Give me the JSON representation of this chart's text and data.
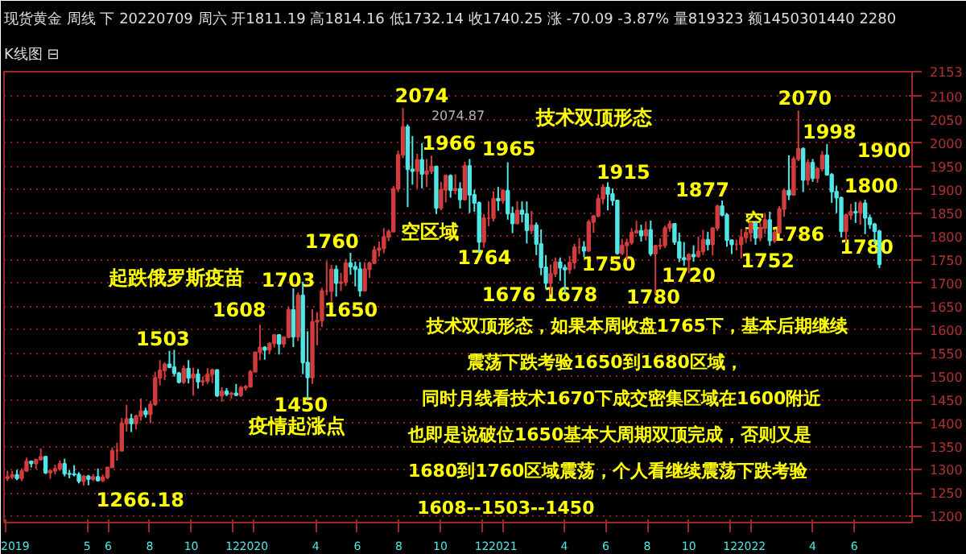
{
  "chart_data": {
    "type": "candlestick",
    "title": "现货黄金 周线 下 20220709 周六 开1811.19 高1814.16 低1732.14 收1740.25 涨 -70.09 -3.87% 量819323 额1450301440 2280",
    "subtitle": "K线图 ⊟",
    "grid": "y",
    "xlim": [
      "2018-12-30",
      "2022-08-25"
    ],
    "ylim": [
      1187,
      2153
    ],
    "yticks": [
      1200,
      1250,
      1300,
      1350,
      1400,
      1450,
      1500,
      1550,
      1600,
      1650,
      1700,
      1750,
      1800,
      1850,
      1900,
      1950,
      2000,
      2050,
      2100,
      2153
    ],
    "xticks": [
      {
        "value": "2019-01-01",
        "label": "2019"
      },
      {
        "value": "2019-05-01",
        "label": "5"
      },
      {
        "value": "2019-06-01",
        "label": "6"
      },
      {
        "value": "2019-08-01",
        "label": "8"
      },
      {
        "value": "2019-10-01",
        "label": "10"
      },
      {
        "value": "2019-12-01",
        "label": "12"
      },
      {
        "value": "2020-01-01",
        "label": "2020"
      },
      {
        "value": "2020-04-01",
        "label": "4"
      },
      {
        "value": "2020-06-01",
        "label": "6"
      },
      {
        "value": "2020-08-01",
        "label": "8"
      },
      {
        "value": "2020-10-01",
        "label": "10"
      },
      {
        "value": "2020-12-01",
        "label": "12"
      },
      {
        "value": "2021-01-01",
        "label": "2021"
      },
      {
        "value": "2021-04-01",
        "label": "4"
      },
      {
        "value": "2021-06-01",
        "label": "6"
      },
      {
        "value": "2021-08-01",
        "label": "8"
      },
      {
        "value": "2021-10-01",
        "label": "10"
      },
      {
        "value": "2021-12-01",
        "label": "12"
      },
      {
        "value": "2022-01-01",
        "label": "2022"
      },
      {
        "value": "2022-04-01",
        "label": "4"
      },
      {
        "value": "2022-06-01",
        "label": "6"
      }
    ],
    "x": [
      "2019-01-04",
      "2019-01-11",
      "2019-01-18",
      "2019-01-25",
      "2019-02-01",
      "2019-02-08",
      "2019-02-15",
      "2019-02-22",
      "2019-03-01",
      "2019-03-08",
      "2019-03-15",
      "2019-03-22",
      "2019-03-29",
      "2019-04-05",
      "2019-04-12",
      "2019-04-19",
      "2019-04-26",
      "2019-05-03",
      "2019-05-10",
      "2019-05-17",
      "2019-05-24",
      "2019-05-31",
      "2019-06-07",
      "2019-06-14",
      "2019-06-21",
      "2019-06-28",
      "2019-07-05",
      "2019-07-12",
      "2019-07-19",
      "2019-07-26",
      "2019-08-02",
      "2019-08-09",
      "2019-08-16",
      "2019-08-23",
      "2019-08-30",
      "2019-09-06",
      "2019-09-13",
      "2019-09-20",
      "2019-09-27",
      "2019-10-04",
      "2019-10-11",
      "2019-10-18",
      "2019-10-25",
      "2019-11-01",
      "2019-11-08",
      "2019-11-15",
      "2019-11-22",
      "2019-11-29",
      "2019-12-06",
      "2019-12-13",
      "2019-12-20",
      "2019-12-27",
      "2020-01-03",
      "2020-01-10",
      "2020-01-17",
      "2020-01-24",
      "2020-01-31",
      "2020-02-07",
      "2020-02-14",
      "2020-02-21",
      "2020-02-28",
      "2020-03-06",
      "2020-03-13",
      "2020-03-20",
      "2020-03-27",
      "2020-04-03",
      "2020-04-10",
      "2020-04-17",
      "2020-04-24",
      "2020-05-01",
      "2020-05-08",
      "2020-05-15",
      "2020-05-22",
      "2020-05-29",
      "2020-06-05",
      "2020-06-12",
      "2020-06-19",
      "2020-06-26",
      "2020-07-03",
      "2020-07-10",
      "2020-07-17",
      "2020-07-24",
      "2020-07-31",
      "2020-08-07",
      "2020-08-14",
      "2020-08-21",
      "2020-08-28",
      "2020-09-04",
      "2020-09-11",
      "2020-09-18",
      "2020-09-25",
      "2020-10-02",
      "2020-10-09",
      "2020-10-16",
      "2020-10-23",
      "2020-10-30",
      "2020-11-06",
      "2020-11-13",
      "2020-11-20",
      "2020-11-27",
      "2020-12-04",
      "2020-12-11",
      "2020-12-18",
      "2020-12-25",
      "2021-01-01",
      "2021-01-08",
      "2021-01-15",
      "2021-01-22",
      "2021-01-29",
      "2021-02-05",
      "2021-02-12",
      "2021-02-19",
      "2021-02-26",
      "2021-03-05",
      "2021-03-12",
      "2021-03-19",
      "2021-03-26",
      "2021-04-02",
      "2021-04-09",
      "2021-04-16",
      "2021-04-23",
      "2021-04-30",
      "2021-05-07",
      "2021-05-14",
      "2021-05-21",
      "2021-05-28",
      "2021-06-04",
      "2021-06-11",
      "2021-06-18",
      "2021-06-25",
      "2021-07-02",
      "2021-07-09",
      "2021-07-16",
      "2021-07-23",
      "2021-07-30",
      "2021-08-06",
      "2021-08-13",
      "2021-08-20",
      "2021-08-27",
      "2021-09-03",
      "2021-09-10",
      "2021-09-17",
      "2021-09-24",
      "2021-10-01",
      "2021-10-08",
      "2021-10-15",
      "2021-10-22",
      "2021-10-29",
      "2021-11-05",
      "2021-11-12",
      "2021-11-19",
      "2021-11-26",
      "2021-12-03",
      "2021-12-10",
      "2021-12-17",
      "2021-12-24",
      "2021-12-31",
      "2022-01-07",
      "2022-01-14",
      "2022-01-21",
      "2022-01-28",
      "2022-02-04",
      "2022-02-11",
      "2022-02-18",
      "2022-02-25",
      "2022-03-04",
      "2022-03-11",
      "2022-03-18",
      "2022-03-25",
      "2022-04-01",
      "2022-04-08",
      "2022-04-15",
      "2022-04-22",
      "2022-04-29",
      "2022-05-06",
      "2022-05-13",
      "2022-05-20",
      "2022-05-27",
      "2022-06-03",
      "2022-06-10",
      "2022-06-17",
      "2022-06-24",
      "2022-07-01",
      "2022-07-08"
    ],
    "ohlc": [
      [
        1282,
        1298,
        1276,
        1285
      ],
      [
        1285,
        1298,
        1280,
        1289
      ],
      [
        1289,
        1300,
        1278,
        1282
      ],
      [
        1282,
        1303,
        1276,
        1298
      ],
      [
        1298,
        1326,
        1296,
        1318
      ],
      [
        1318,
        1320,
        1305,
        1314
      ],
      [
        1314,
        1323,
        1302,
        1322
      ],
      [
        1322,
        1346,
        1320,
        1328
      ],
      [
        1328,
        1330,
        1291,
        1294
      ],
      [
        1294,
        1300,
        1281,
        1298
      ],
      [
        1298,
        1311,
        1290,
        1302
      ],
      [
        1302,
        1320,
        1298,
        1313
      ],
      [
        1313,
        1324,
        1286,
        1292
      ],
      [
        1292,
        1299,
        1282,
        1291
      ],
      [
        1291,
        1310,
        1286,
        1290
      ],
      [
        1290,
        1295,
        1271,
        1276
      ],
      [
        1276,
        1288,
        1266,
        1286
      ],
      [
        1286,
        1289,
        1267,
        1280
      ],
      [
        1280,
        1291,
        1276,
        1285
      ],
      [
        1285,
        1303,
        1275,
        1277
      ],
      [
        1277,
        1290,
        1274,
        1284
      ],
      [
        1284,
        1306,
        1280,
        1305
      ],
      [
        1305,
        1348,
        1305,
        1341
      ],
      [
        1341,
        1358,
        1320,
        1341
      ],
      [
        1341,
        1411,
        1340,
        1399
      ],
      [
        1399,
        1439,
        1382,
        1409
      ],
      [
        1409,
        1420,
        1381,
        1399
      ],
      [
        1399,
        1418,
        1387,
        1415
      ],
      [
        1415,
        1453,
        1405,
        1426
      ],
      [
        1426,
        1433,
        1412,
        1419
      ],
      [
        1419,
        1448,
        1400,
        1440
      ],
      [
        1440,
        1510,
        1437,
        1497
      ],
      [
        1497,
        1535,
        1481,
        1513
      ],
      [
        1513,
        1530,
        1492,
        1526
      ],
      [
        1526,
        1555,
        1518,
        1520
      ],
      [
        1520,
        1557,
        1500,
        1507
      ],
      [
        1507,
        1510,
        1485,
        1488
      ],
      [
        1488,
        1524,
        1484,
        1517
      ],
      [
        1517,
        1535,
        1485,
        1497
      ],
      [
        1497,
        1519,
        1459,
        1505
      ],
      [
        1505,
        1516,
        1474,
        1489
      ],
      [
        1489,
        1500,
        1480,
        1490
      ],
      [
        1490,
        1518,
        1484,
        1505
      ],
      [
        1505,
        1517,
        1486,
        1514
      ],
      [
        1514,
        1515,
        1456,
        1459
      ],
      [
        1459,
        1477,
        1446,
        1468
      ],
      [
        1468,
        1475,
        1458,
        1462
      ],
      [
        1462,
        1467,
        1452,
        1464
      ],
      [
        1464,
        1484,
        1458,
        1460
      ],
      [
        1460,
        1480,
        1456,
        1476
      ],
      [
        1476,
        1482,
        1470,
        1478
      ],
      [
        1478,
        1514,
        1478,
        1510
      ],
      [
        1510,
        1553,
        1510,
        1552
      ],
      [
        1552,
        1611,
        1535,
        1562
      ],
      [
        1562,
        1565,
        1536,
        1557
      ],
      [
        1557,
        1573,
        1548,
        1571
      ],
      [
        1571,
        1591,
        1562,
        1589
      ],
      [
        1589,
        1591,
        1547,
        1570
      ],
      [
        1570,
        1585,
        1562,
        1584
      ],
      [
        1584,
        1649,
        1582,
        1643
      ],
      [
        1643,
        1689,
        1563,
        1585
      ],
      [
        1585,
        1680,
        1576,
        1674
      ],
      [
        1674,
        1703,
        1505,
        1530
      ],
      [
        1530,
        1597,
        1451,
        1498
      ],
      [
        1498,
        1644,
        1484,
        1617
      ],
      [
        1617,
        1638,
        1567,
        1620
      ],
      [
        1620,
        1690,
        1606,
        1683
      ],
      [
        1683,
        1747,
        1674,
        1683
      ],
      [
        1683,
        1739,
        1660,
        1729
      ],
      [
        1729,
        1738,
        1671,
        1700
      ],
      [
        1700,
        1722,
        1683,
        1702
      ],
      [
        1702,
        1752,
        1694,
        1743
      ],
      [
        1743,
        1765,
        1718,
        1735
      ],
      [
        1735,
        1746,
        1693,
        1730
      ],
      [
        1730,
        1745,
        1671,
        1684
      ],
      [
        1684,
        1745,
        1684,
        1730
      ],
      [
        1730,
        1746,
        1711,
        1743
      ],
      [
        1743,
        1779,
        1741,
        1771
      ],
      [
        1771,
        1789,
        1757,
        1775
      ],
      [
        1775,
        1818,
        1764,
        1799
      ],
      [
        1799,
        1815,
        1790,
        1810
      ],
      [
        1810,
        1908,
        1810,
        1902
      ],
      [
        1902,
        1984,
        1895,
        1975
      ],
      [
        1975,
        2075,
        1968,
        2035
      ],
      [
        2035,
        2040,
        1863,
        1944
      ],
      [
        1944,
        2015,
        1911,
        1940
      ],
      [
        1940,
        1977,
        1903,
        1964
      ],
      [
        1964,
        2000,
        1903,
        1934
      ],
      [
        1934,
        1966,
        1906,
        1940
      ],
      [
        1940,
        1973,
        1934,
        1950
      ],
      [
        1950,
        1950,
        1848,
        1861
      ],
      [
        1861,
        1917,
        1856,
        1900
      ],
      [
        1900,
        1933,
        1873,
        1930
      ],
      [
        1930,
        1933,
        1883,
        1899
      ],
      [
        1899,
        1933,
        1890,
        1902
      ],
      [
        1902,
        1916,
        1860,
        1879
      ],
      [
        1879,
        1960,
        1877,
        1951
      ],
      [
        1951,
        1966,
        1850,
        1889
      ],
      [
        1889,
        1900,
        1853,
        1872
      ],
      [
        1872,
        1875,
        1764,
        1788
      ],
      [
        1788,
        1848,
        1776,
        1839
      ],
      [
        1839,
        1875,
        1822,
        1839
      ],
      [
        1839,
        1897,
        1832,
        1881
      ],
      [
        1881,
        1906,
        1855,
        1877
      ],
      [
        1877,
        1902,
        1870,
        1898
      ],
      [
        1898,
        1959,
        1836,
        1849
      ],
      [
        1849,
        1864,
        1807,
        1828
      ],
      [
        1828,
        1875,
        1826,
        1856
      ],
      [
        1856,
        1875,
        1830,
        1848
      ],
      [
        1848,
        1875,
        1785,
        1813
      ],
      [
        1813,
        1855,
        1805,
        1824
      ],
      [
        1824,
        1830,
        1760,
        1784
      ],
      [
        1784,
        1815,
        1717,
        1734
      ],
      [
        1734,
        1760,
        1687,
        1700
      ],
      [
        1700,
        1740,
        1676,
        1720
      ],
      [
        1720,
        1755,
        1713,
        1745
      ],
      [
        1745,
        1755,
        1705,
        1733
      ],
      [
        1733,
        1740,
        1678,
        1729
      ],
      [
        1729,
        1758,
        1720,
        1744
      ],
      [
        1744,
        1784,
        1730,
        1777
      ],
      [
        1777,
        1797,
        1762,
        1777
      ],
      [
        1777,
        1790,
        1756,
        1769
      ],
      [
        1769,
        1836,
        1767,
        1831
      ],
      [
        1831,
        1845,
        1808,
        1844
      ],
      [
        1844,
        1890,
        1841,
        1881
      ],
      [
        1881,
        1912,
        1869,
        1905
      ],
      [
        1905,
        1916,
        1856,
        1891
      ],
      [
        1891,
        1903,
        1866,
        1877
      ],
      [
        1877,
        1877,
        1761,
        1764
      ],
      [
        1764,
        1795,
        1760,
        1781
      ],
      [
        1781,
        1795,
        1750,
        1787
      ],
      [
        1787,
        1818,
        1782,
        1808
      ],
      [
        1808,
        1834,
        1806,
        1812
      ],
      [
        1812,
        1825,
        1789,
        1802
      ],
      [
        1802,
        1832,
        1791,
        1814
      ],
      [
        1814,
        1834,
        1758,
        1763
      ],
      [
        1763,
        1782,
        1677,
        1780
      ],
      [
        1780,
        1796,
        1772,
        1781
      ],
      [
        1781,
        1823,
        1775,
        1818
      ],
      [
        1818,
        1834,
        1810,
        1827
      ],
      [
        1827,
        1828,
        1782,
        1788
      ],
      [
        1788,
        1808,
        1745,
        1754
      ],
      [
        1754,
        1788,
        1737,
        1750
      ],
      [
        1750,
        1764,
        1721,
        1761
      ],
      [
        1761,
        1781,
        1746,
        1757
      ],
      [
        1757,
        1800,
        1755,
        1768
      ],
      [
        1768,
        1814,
        1760,
        1793
      ],
      [
        1793,
        1810,
        1770,
        1783
      ],
      [
        1783,
        1818,
        1759,
        1818
      ],
      [
        1818,
        1868,
        1812,
        1865
      ],
      [
        1865,
        1877,
        1843,
        1846
      ],
      [
        1846,
        1850,
        1778,
        1792
      ],
      [
        1792,
        1792,
        1762,
        1783
      ],
      [
        1783,
        1793,
        1770,
        1783
      ],
      [
        1783,
        1816,
        1753,
        1798
      ],
      [
        1798,
        1815,
        1786,
        1808
      ],
      [
        1808,
        1831,
        1789,
        1829
      ],
      [
        1829,
        1831,
        1782,
        1797
      ],
      [
        1797,
        1828,
        1790,
        1818
      ],
      [
        1818,
        1848,
        1805,
        1835
      ],
      [
        1835,
        1853,
        1780,
        1791
      ],
      [
        1791,
        1815,
        1786,
        1808
      ],
      [
        1808,
        1865,
        1807,
        1859
      ],
      [
        1859,
        1903,
        1842,
        1898
      ],
      [
        1898,
        1974,
        1878,
        1889
      ],
      [
        1889,
        1971,
        1889,
        1966
      ],
      [
        1966,
        2070,
        1961,
        1988
      ],
      [
        1988,
        1991,
        1895,
        1921
      ],
      [
        1921,
        1966,
        1910,
        1958
      ],
      [
        1958,
        1966,
        1917,
        1925
      ],
      [
        1925,
        1948,
        1915,
        1945
      ],
      [
        1945,
        1983,
        1939,
        1974
      ],
      [
        1974,
        1998,
        1930,
        1932
      ],
      [
        1932,
        1936,
        1872,
        1896
      ],
      [
        1896,
        1909,
        1850,
        1883
      ],
      [
        1883,
        1885,
        1798,
        1811
      ],
      [
        1811,
        1849,
        1786,
        1846
      ],
      [
        1846,
        1870,
        1836,
        1853
      ],
      [
        1853,
        1874,
        1829,
        1851
      ],
      [
        1851,
        1876,
        1825,
        1871
      ],
      [
        1871,
        1879,
        1805,
        1840
      ],
      [
        1840,
        1847,
        1816,
        1826
      ],
      [
        1826,
        1829,
        1784,
        1811
      ],
      [
        1811.19,
        1814.16,
        1732.14,
        1740.25
      ]
    ],
    "annotations": [
      "2074",
      "2074.87",
      "1966",
      "1965",
      "1915",
      "1877",
      "2070",
      "1998",
      "1900",
      "1800",
      "1780",
      "1786",
      "1752",
      "空",
      "1720",
      "1780",
      "1750",
      "1678",
      "1676",
      "1764",
      "1760",
      "空区域",
      "1703",
      "起跌俄罗斯疫苗",
      "1608",
      "1650",
      "1503",
      "1450",
      "疫情起涨点",
      "1266.18",
      "技术双顶形态",
      "技术双顶形态，如果本周收盘1765下，基本后期继续",
      "震荡下跌考验1650到1680区域，",
      "同时月线看技术1670下成交密集区域在1600附近",
      "也即是说破位1650基本大周期双顶完成，否则又是",
      "1680到1760区域震荡，个人看继续震荡下跌考验",
      "1608--1503--1450"
    ]
  }
}
